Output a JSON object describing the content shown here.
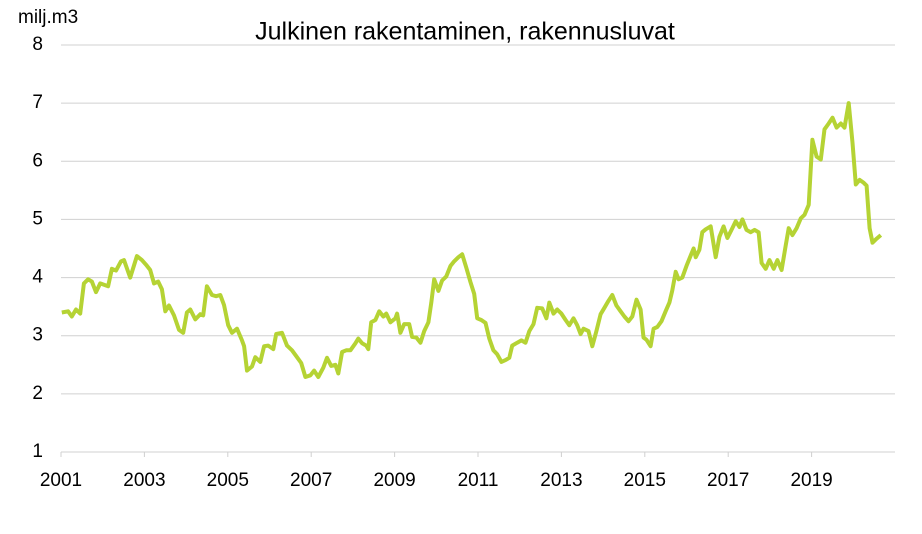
{
  "chart_data": {
    "type": "line",
    "title": "Julkinen rakentaminen, rakennusluvat",
    "y_label": "milj.m3",
    "xlim": [
      2001,
      2021
    ],
    "xticks": [
      2001,
      2003,
      2005,
      2007,
      2009,
      2011,
      2013,
      2015,
      2017,
      2019
    ],
    "ylim": [
      1,
      8
    ],
    "yticks": [
      1,
      2,
      3,
      4,
      5,
      6,
      7,
      8
    ],
    "grid": true,
    "series": [
      {
        "color": "#b5d334",
        "x": [
          2001.02,
          2001.17,
          2001.26,
          2001.36,
          2001.46,
          2001.55,
          2001.65,
          2001.74,
          2001.84,
          2001.94,
          2002.13,
          2002.22,
          2002.32,
          2002.44,
          2002.51,
          2002.66,
          2002.82,
          2002.94,
          2003.04,
          2003.14,
          2003.23,
          2003.33,
          2003.42,
          2003.5,
          2003.59,
          2003.71,
          2003.83,
          2003.93,
          2004.02,
          2004.1,
          2004.22,
          2004.34,
          2004.41,
          2004.5,
          2004.62,
          2004.72,
          2004.82,
          2004.91,
          2005.01,
          2005.1,
          2005.22,
          2005.34,
          2005.39,
          2005.46,
          2005.58,
          2005.66,
          2005.78,
          2005.87,
          2005.97,
          2006.09,
          2006.16,
          2006.3,
          2006.42,
          2006.54,
          2006.64,
          2006.76,
          2006.86,
          2006.98,
          2007.07,
          2007.17,
          2007.29,
          2007.38,
          2007.48,
          2007.58,
          2007.65,
          2007.74,
          2007.84,
          2007.94,
          2008.06,
          2008.13,
          2008.22,
          2008.32,
          2008.37,
          2008.44,
          2008.54,
          2008.63,
          2008.73,
          2008.8,
          2008.9,
          2009.02,
          2009.06,
          2009.14,
          2009.23,
          2009.35,
          2009.42,
          2009.52,
          2009.62,
          2009.71,
          2009.81,
          2009.88,
          2009.95,
          2010.05,
          2010.14,
          2010.24,
          2010.34,
          2010.43,
          2010.53,
          2010.62,
          2010.72,
          2010.82,
          2010.91,
          2010.98,
          2011.08,
          2011.18,
          2011.27,
          2011.37,
          2011.46,
          2011.56,
          2011.66,
          2011.75,
          2011.82,
          2011.94,
          2012.04,
          2012.14,
          2012.23,
          2012.33,
          2012.42,
          2012.54,
          2012.64,
          2012.71,
          2012.81,
          2012.9,
          2013.0,
          2013.1,
          2013.19,
          2013.29,
          2013.38,
          2013.46,
          2013.53,
          2013.65,
          2013.74,
          2013.84,
          2013.94,
          2014.03,
          2014.13,
          2014.22,
          2014.32,
          2014.42,
          2014.51,
          2014.61,
          2014.7,
          2014.8,
          2014.9,
          2014.97,
          2015.04,
          2015.14,
          2015.21,
          2015.3,
          2015.4,
          2015.5,
          2015.59,
          2015.66,
          2015.74,
          2015.81,
          2015.9,
          2016.0,
          2016.1,
          2016.17,
          2016.22,
          2016.31,
          2016.38,
          2016.46,
          2016.58,
          2016.7,
          2016.79,
          2016.89,
          2016.98,
          2017.08,
          2017.18,
          2017.27,
          2017.34,
          2017.44,
          2017.54,
          2017.63,
          2017.73,
          2017.8,
          2017.9,
          2017.99,
          2018.09,
          2018.18,
          2018.28,
          2018.38,
          2018.45,
          2018.54,
          2018.64,
          2018.74,
          2018.83,
          2018.93,
          2019.02,
          2019.12,
          2019.22,
          2019.31,
          2019.41,
          2019.5,
          2019.6,
          2019.7,
          2019.79,
          2019.89,
          2019.98,
          2020.06,
          2020.15,
          2020.25,
          2020.32,
          2020.39,
          2020.46,
          2020.56,
          2020.66
        ],
        "values": [
          3.4,
          3.42,
          3.33,
          3.45,
          3.38,
          3.9,
          3.97,
          3.93,
          3.75,
          3.9,
          3.85,
          4.15,
          4.12,
          4.28,
          4.3,
          4.0,
          4.37,
          4.3,
          4.22,
          4.13,
          3.9,
          3.93,
          3.8,
          3.42,
          3.52,
          3.35,
          3.1,
          3.05,
          3.4,
          3.45,
          3.28,
          3.37,
          3.35,
          3.85,
          3.7,
          3.68,
          3.7,
          3.53,
          3.18,
          3.05,
          3.12,
          2.92,
          2.82,
          2.4,
          2.47,
          2.63,
          2.55,
          2.82,
          2.83,
          2.77,
          3.03,
          3.05,
          2.83,
          2.75,
          2.65,
          2.53,
          2.29,
          2.32,
          2.4,
          2.29,
          2.45,
          2.62,
          2.48,
          2.5,
          2.35,
          2.72,
          2.75,
          2.75,
          2.87,
          2.95,
          2.87,
          2.83,
          2.77,
          3.23,
          3.27,
          3.42,
          3.33,
          3.38,
          3.23,
          3.3,
          3.38,
          3.05,
          3.2,
          3.2,
          2.98,
          2.97,
          2.88,
          3.08,
          3.23,
          3.57,
          3.97,
          3.77,
          3.95,
          4.02,
          4.2,
          4.28,
          4.35,
          4.4,
          4.17,
          3.92,
          3.72,
          3.3,
          3.27,
          3.22,
          2.95,
          2.75,
          2.68,
          2.55,
          2.58,
          2.62,
          2.83,
          2.88,
          2.92,
          2.88,
          3.08,
          3.2,
          3.48,
          3.47,
          3.3,
          3.57,
          3.38,
          3.45,
          3.38,
          3.27,
          3.18,
          3.3,
          3.18,
          3.03,
          3.12,
          3.08,
          2.82,
          3.08,
          3.37,
          3.48,
          3.6,
          3.7,
          3.52,
          3.42,
          3.33,
          3.25,
          3.33,
          3.62,
          3.45,
          2.97,
          2.93,
          2.82,
          3.12,
          3.15,
          3.25,
          3.42,
          3.57,
          3.78,
          4.1,
          3.97,
          4.0,
          4.2,
          4.38,
          4.5,
          4.35,
          4.48,
          4.78,
          4.83,
          4.88,
          4.35,
          4.7,
          4.88,
          4.68,
          4.82,
          4.97,
          4.87,
          5.0,
          4.82,
          4.78,
          4.82,
          4.78,
          4.25,
          4.15,
          4.3,
          4.15,
          4.3,
          4.13,
          4.55,
          4.85,
          4.73,
          4.85,
          5.02,
          5.08,
          5.25,
          6.37,
          6.08,
          6.03,
          6.55,
          6.65,
          6.75,
          6.58,
          6.65,
          6.58,
          7.0,
          6.32,
          5.6,
          5.68,
          5.63,
          5.58,
          4.85,
          4.6,
          4.67,
          4.73
        ]
      }
    ]
  }
}
